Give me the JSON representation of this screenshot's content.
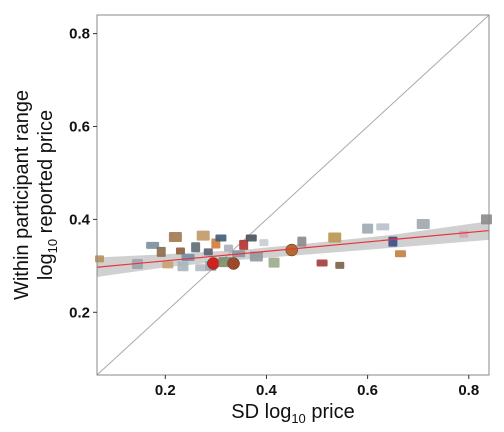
{
  "chart_data": {
    "type": "scatter",
    "xlabel": {
      "pre": "SD log",
      "sub": "10",
      "post": " price"
    },
    "ylabel": {
      "line1": "Within participant range",
      "line2": {
        "pre": "log",
        "sub": "10",
        "post": " reported price"
      }
    },
    "xlim": [
      0.065,
      0.84
    ],
    "ylim": [
      0.065,
      0.84
    ],
    "x_ticks": [
      0.2,
      0.4,
      0.6,
      0.8
    ],
    "y_ticks": [
      0.2,
      0.4,
      0.6,
      0.8
    ],
    "x_tick_labels": [
      "0.2",
      "0.4",
      "0.6",
      "0.8"
    ],
    "y_tick_labels": [
      "0.2",
      "0.4",
      "0.6",
      "0.8"
    ],
    "identity_line": {
      "from": [
        0.065,
        0.065
      ],
      "to": [
        0.84,
        0.84
      ],
      "color": "#aaaaaa"
    },
    "fit_line": {
      "from": [
        0.065,
        0.297
      ],
      "to": [
        0.84,
        0.376
      ],
      "color": "#e8323c"
    },
    "confidence_band": {
      "x": [
        0.065,
        0.2,
        0.35,
        0.5,
        0.65,
        0.84
      ],
      "upper": [
        0.318,
        0.325,
        0.334,
        0.35,
        0.367,
        0.396
      ],
      "lower": [
        0.276,
        0.297,
        0.313,
        0.326,
        0.339,
        0.356
      ],
      "color": "#c8c8c8"
    },
    "grid": false,
    "marker_style": "product-image",
    "points": [
      {
        "x": 0.07,
        "y": 0.315,
        "color": "#b8905a",
        "shape": "rect"
      },
      {
        "x": 0.145,
        "y": 0.304,
        "color": "#9ca3ad",
        "shape": "rect"
      },
      {
        "x": 0.175,
        "y": 0.344,
        "color": "#7a8e9e",
        "shape": "rect"
      },
      {
        "x": 0.192,
        "y": 0.33,
        "color": "#8a6a4a",
        "shape": "rect"
      },
      {
        "x": 0.205,
        "y": 0.302,
        "color": "#caa070",
        "shape": "rect"
      },
      {
        "x": 0.22,
        "y": 0.362,
        "color": "#a07850",
        "shape": "rect"
      },
      {
        "x": 0.23,
        "y": 0.332,
        "color": "#8a5a3a",
        "shape": "rect"
      },
      {
        "x": 0.235,
        "y": 0.299,
        "color": "#a9b4bd",
        "shape": "rect"
      },
      {
        "x": 0.245,
        "y": 0.318,
        "color": "#6f8fa8",
        "shape": "rect"
      },
      {
        "x": 0.26,
        "y": 0.34,
        "color": "#5e6a74",
        "shape": "rect"
      },
      {
        "x": 0.27,
        "y": 0.296,
        "color": "#b4bcc2",
        "shape": "rect"
      },
      {
        "x": 0.275,
        "y": 0.365,
        "color": "#c09868",
        "shape": "rect"
      },
      {
        "x": 0.285,
        "y": 0.33,
        "color": "#555f6a",
        "shape": "rect"
      },
      {
        "x": 0.29,
        "y": 0.3,
        "color": "#9aa4ac",
        "shape": "rect"
      },
      {
        "x": 0.295,
        "y": 0.305,
        "color": "#cc2222",
        "shape": "circle"
      },
      {
        "x": 0.3,
        "y": 0.348,
        "color": "#d07a3a",
        "shape": "rect"
      },
      {
        "x": 0.31,
        "y": 0.36,
        "color": "#3e5a7a",
        "shape": "rect"
      },
      {
        "x": 0.318,
        "y": 0.308,
        "color": "#7c8c6a",
        "shape": "rect"
      },
      {
        "x": 0.325,
        "y": 0.338,
        "color": "#aab0b8",
        "shape": "rect"
      },
      {
        "x": 0.335,
        "y": 0.305,
        "color": "#9b4a2a",
        "shape": "circle"
      },
      {
        "x": 0.345,
        "y": 0.326,
        "color": "#8a94a0",
        "shape": "rect"
      },
      {
        "x": 0.355,
        "y": 0.345,
        "color": "#b03030",
        "shape": "rect"
      },
      {
        "x": 0.37,
        "y": 0.36,
        "color": "#4a4f57",
        "shape": "rect"
      },
      {
        "x": 0.38,
        "y": 0.32,
        "color": "#90989f",
        "shape": "rect"
      },
      {
        "x": 0.395,
        "y": 0.35,
        "color": "#c8ccd0",
        "shape": "rect"
      },
      {
        "x": 0.415,
        "y": 0.307,
        "color": "#9aaa8a",
        "shape": "rect"
      },
      {
        "x": 0.45,
        "y": 0.334,
        "color": "#b06a32",
        "shape": "circle"
      },
      {
        "x": 0.47,
        "y": 0.352,
        "color": "#8a8a8a",
        "shape": "rect"
      },
      {
        "x": 0.51,
        "y": 0.306,
        "color": "#a03a3a",
        "shape": "rect"
      },
      {
        "x": 0.535,
        "y": 0.361,
        "color": "#b8944c",
        "shape": "rect"
      },
      {
        "x": 0.545,
        "y": 0.301,
        "color": "#7a6048",
        "shape": "rect"
      },
      {
        "x": 0.6,
        "y": 0.38,
        "color": "#9ea8b2",
        "shape": "rect"
      },
      {
        "x": 0.63,
        "y": 0.384,
        "color": "#b8c0c8",
        "shape": "rect"
      },
      {
        "x": 0.65,
        "y": 0.352,
        "color": "#3a4a8a",
        "shape": "rect"
      },
      {
        "x": 0.665,
        "y": 0.326,
        "color": "#c08040",
        "shape": "rect"
      },
      {
        "x": 0.71,
        "y": 0.39,
        "color": "#a0a6ac",
        "shape": "rect"
      },
      {
        "x": 0.79,
        "y": 0.368,
        "color": "#d0a8b0",
        "shape": "rect"
      },
      {
        "x": 0.835,
        "y": 0.4,
        "color": "#8a8a8a",
        "shape": "rect"
      }
    ]
  }
}
